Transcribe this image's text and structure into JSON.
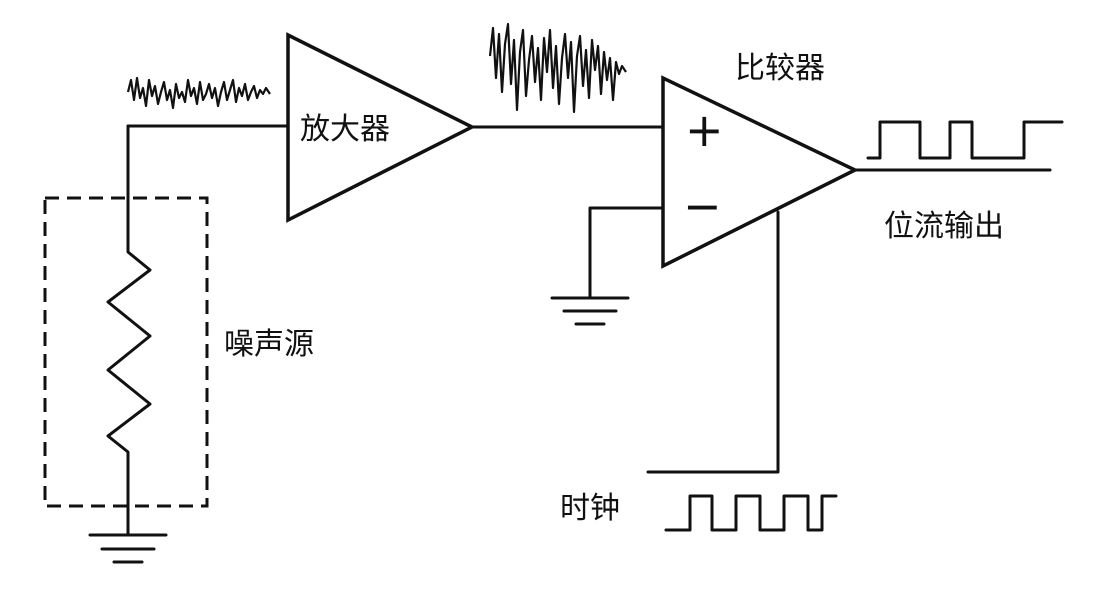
{
  "labels": {
    "amplifier": "放大器",
    "comparator": "比较器",
    "noise_source": "噪声源",
    "bitstream_output": "位流输出",
    "clock": "时钟",
    "plus": "+",
    "minus": "−"
  }
}
